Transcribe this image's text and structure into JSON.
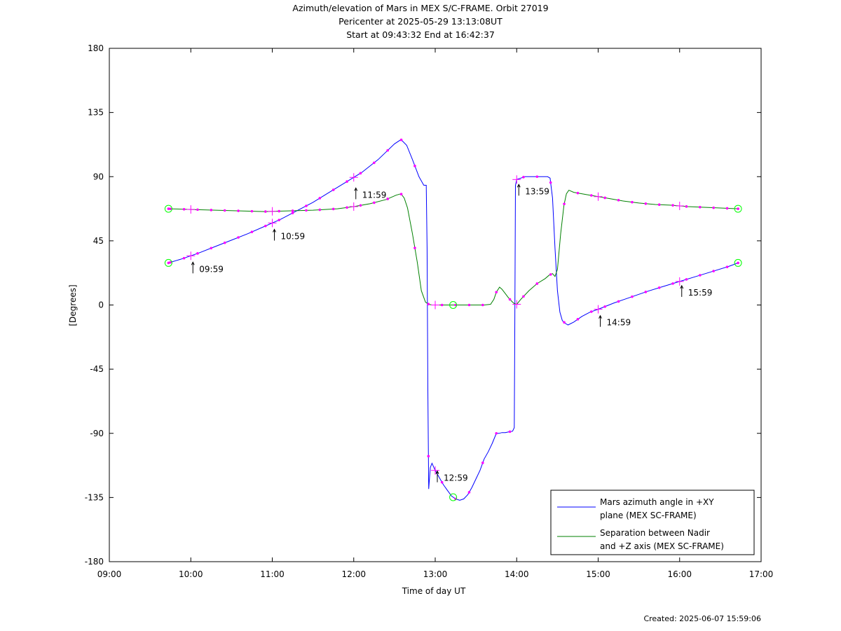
{
  "titles": {
    "line1": "Azimuth/elevation of Mars in MEX S/C-FRAME.  Orbit 27019",
    "line2": "Pericenter at 2025-05-29 13:13:08UT",
    "line3": "Start at 09:43:32 End at 16:42:37"
  },
  "created": "Created: 2025-06-07 15:59:06",
  "colors": {
    "azimuth": "#0000ff",
    "separation": "#008000",
    "markers": "#ff00ff",
    "endpoints": "#00ff00"
  },
  "chart_data": {
    "type": "line",
    "xlabel": "Time of day UT",
    "ylabel": "[Degrees]",
    "xlim": [
      9.0,
      17.0
    ],
    "ylim": [
      -180,
      180
    ],
    "x_ticks": [
      9,
      10,
      11,
      12,
      13,
      14,
      15,
      16,
      17
    ],
    "x_tick_labels": [
      "09:00",
      "10:00",
      "11:00",
      "12:00",
      "13:00",
      "14:00",
      "15:00",
      "16:00",
      "17:00"
    ],
    "y_ticks": [
      180,
      135,
      90,
      45,
      0,
      -45,
      -90,
      -135,
      -180
    ],
    "y_tick_labels": [
      "180",
      "135",
      "90",
      "45",
      "0",
      "-45",
      "-90",
      "-135",
      "-180"
    ],
    "legend": {
      "placement": "bottom-right",
      "entries": [
        {
          "series": "azimuth",
          "lines": [
            "Mars azimuth angle in +XY",
            "plane (MEX SC-FRAME)"
          ]
        },
        {
          "series": "separation",
          "lines": [
            "Separation between Nadir",
            "and +Z axis (MEX SC-FRAME)"
          ]
        }
      ]
    },
    "series": [
      {
        "key": "azimuth",
        "name": "Mars azimuth angle in +XY plane (MEX SC-FRAME)",
        "color": "#0000ff",
        "x": [
          9.726,
          9.9,
          10.1,
          10.3,
          10.5,
          10.7,
          10.9,
          11.1,
          11.3,
          11.5,
          11.7,
          11.9,
          12.1,
          12.3,
          12.5,
          12.58,
          12.65,
          12.72,
          12.8,
          12.86,
          12.89,
          12.9,
          12.91,
          12.92,
          12.94,
          12.96,
          13.0,
          13.05,
          13.1,
          13.15,
          13.2,
          13.25,
          13.3,
          13.35,
          13.4,
          13.45,
          13.5,
          13.55,
          13.6,
          13.65,
          13.7,
          13.75,
          13.78,
          13.82,
          13.86,
          13.9,
          13.95,
          13.97,
          13.975,
          13.98,
          13.985,
          14.0,
          14.05,
          14.1,
          14.2,
          14.3,
          14.38,
          14.41,
          14.44,
          14.47,
          14.5,
          14.53,
          14.56,
          14.6,
          14.63,
          14.7,
          14.8,
          14.9,
          15.0,
          15.2,
          15.4,
          15.6,
          15.8,
          16.0,
          16.2,
          16.4,
          16.6,
          16.717
        ],
        "y": [
          29.5,
          32.5,
          36.5,
          41,
          45.5,
          50,
          55,
          60,
          66,
          72,
          79,
          86,
          93,
          102,
          113,
          116,
          112,
          102,
          90,
          84,
          84,
          40,
          -60,
          -129,
          -114,
          -111,
          -116,
          -121,
          -126,
          -130,
          -134,
          -136,
          -137,
          -136,
          -133,
          -128,
          -122,
          -116,
          -108,
          -103,
          -97,
          -90,
          -90,
          -89.5,
          -89.5,
          -89,
          -88.5,
          -86,
          -40,
          20,
          84,
          88,
          89,
          90,
          90,
          90,
          90,
          89,
          75,
          40,
          10,
          -5,
          -11,
          -13,
          -14,
          -12,
          -8,
          -5,
          -3,
          1.5,
          5.5,
          9.5,
          13,
          16.5,
          20,
          23.5,
          27,
          29.5
        ]
      },
      {
        "key": "separation",
        "name": "Separation between Nadir and +Z axis (MEX SC-FRAME)",
        "color": "#008000",
        "x": [
          9.726,
          10.0,
          10.3,
          10.6,
          10.9,
          11.2,
          11.5,
          11.8,
          12.0,
          12.2,
          12.4,
          12.52,
          12.58,
          12.62,
          12.66,
          12.72,
          12.78,
          12.83,
          12.88,
          12.92,
          12.96,
          13.0,
          13.2,
          13.4,
          13.6,
          13.68,
          13.72,
          13.75,
          13.79,
          13.82,
          13.86,
          13.9,
          13.94,
          13.97,
          14.0,
          14.05,
          14.15,
          14.25,
          14.35,
          14.4,
          14.44,
          14.47,
          14.5,
          14.54,
          14.58,
          14.61,
          14.64,
          14.7,
          14.9,
          15.1,
          15.3,
          15.5,
          15.7,
          15.9,
          16.1,
          16.3,
          16.5,
          16.717
        ],
        "y": [
          67.5,
          67,
          66.5,
          66,
          65.5,
          66,
          66.5,
          67.5,
          69,
          71,
          74,
          77,
          78,
          75,
          68,
          50,
          30,
          10,
          2,
          0.5,
          0,
          0,
          0,
          0,
          0,
          0.5,
          4,
          9,
          12.5,
          11,
          8,
          5,
          2.5,
          1,
          0.5,
          4,
          10,
          15,
          18.5,
          21,
          22,
          20,
          25,
          50,
          70,
          78,
          80.5,
          79,
          77,
          75,
          73,
          71.5,
          70.5,
          70,
          69,
          68.5,
          68,
          67.5
        ]
      }
    ],
    "annotations": [
      {
        "text": "09:59",
        "x": 10.0,
        "y": 32.5
      },
      {
        "text": "10:59",
        "x": 11.0,
        "y": 55.5
      },
      {
        "text": "11:59",
        "x": 12.0,
        "y": 84.5
      },
      {
        "text": "12:59",
        "x": 13.0,
        "y": -114
      },
      {
        "text": "13:59",
        "x": 14.0,
        "y": 87
      },
      {
        "text": "14:59",
        "x": 15.0,
        "y": -5
      },
      {
        "text": "15:59",
        "x": 16.0,
        "y": 16
      }
    ]
  }
}
